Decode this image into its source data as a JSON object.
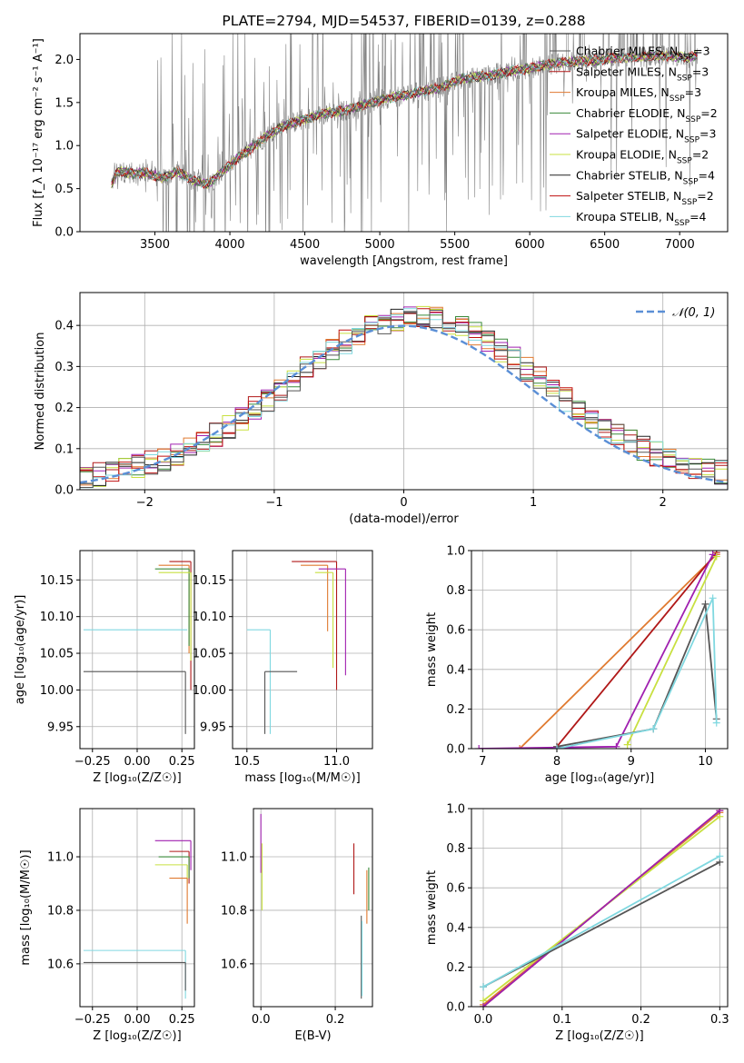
{
  "colors": {
    "black": "#222222",
    "red": "#b01818",
    "orange": "#e07a30",
    "green": "#3a8a3a",
    "purple": "#a020b0",
    "lime": "#c8e040",
    "gray": "#555555",
    "crimson": "#c01010",
    "cyan": "#80d8e0",
    "grid": "#b0b0b0",
    "spectrum": "#808080",
    "normal": "#5b8fd6"
  },
  "chart_data": [
    {
      "id": "spectrum",
      "type": "line",
      "title": "PLATE=2794, MJD=54537, FIBERID=0139, z=0.288",
      "xlabel": "wavelength [Angstrom, rest frame]",
      "ylabel": "Flux [f_λ 10⁻¹⁷ erg cm⁻² s⁻¹ A⁻¹]",
      "xlim": [
        3000,
        7320
      ],
      "ylim": [
        0,
        2.3
      ],
      "xticks": [
        "3500",
        "4000",
        "4500",
        "5000",
        "5500",
        "6000",
        "6500",
        "7000"
      ],
      "xtick_values": [
        3500,
        4000,
        4500,
        5000,
        5500,
        6000,
        6500,
        7000
      ],
      "yticks": [
        "0.0",
        "0.5",
        "1.0",
        "1.5",
        "2.0"
      ],
      "ytick_values": [
        0,
        0.5,
        1.0,
        1.5,
        2.0
      ],
      "data_range": [
        3210,
        7120
      ],
      "continuum": {
        "x": [
          3210,
          3250,
          3350,
          3450,
          3550,
          3650,
          3750,
          3850,
          3950,
          4050,
          4150,
          4250,
          4350,
          4450,
          4550,
          4650,
          4750,
          4850,
          4950,
          5050,
          5150,
          5250,
          5350,
          5450,
          5550,
          5650,
          5750,
          5850,
          5950,
          6050,
          6150,
          6250,
          6350,
          6450,
          6550,
          6650,
          6750,
          6850,
          6950,
          7050,
          7120
        ],
        "y": [
          0.55,
          0.7,
          0.68,
          0.68,
          0.62,
          0.7,
          0.6,
          0.55,
          0.7,
          0.85,
          0.98,
          1.12,
          1.22,
          1.28,
          1.33,
          1.38,
          1.4,
          1.45,
          1.5,
          1.55,
          1.58,
          1.62,
          1.65,
          1.7,
          1.78,
          1.8,
          1.82,
          1.86,
          1.88,
          1.92,
          1.95,
          1.97,
          1.98,
          1.99,
          2.02,
          2.02,
          2.03,
          2.05,
          2.04,
          2.02,
          2.05
        ]
      },
      "legend": [
        {
          "label": "Chabrier MILES, N",
          "sub": "SSP",
          "tail": "=3",
          "color": "gray"
        },
        {
          "label": "Salpeter MILES, N",
          "sub": "SSP",
          "tail": "=3",
          "color": "red"
        },
        {
          "label": "Kroupa MILES, N",
          "sub": "SSP",
          "tail": "=3",
          "color": "orange"
        },
        {
          "label": "Chabrier ELODIE, N",
          "sub": "SSP",
          "tail": "=2",
          "color": "green"
        },
        {
          "label": "Salpeter ELODIE, N",
          "sub": "SSP",
          "tail": "=3",
          "color": "purple"
        },
        {
          "label": "Kroupa ELODIE, N",
          "sub": "SSP",
          "tail": "=2",
          "color": "lime"
        },
        {
          "label": "Chabrier STELIB, N",
          "sub": "SSP",
          "tail": "=4",
          "color": "black"
        },
        {
          "label": "Salpeter STELIB, N",
          "sub": "SSP",
          "tail": "=2",
          "color": "crimson"
        },
        {
          "label": "Kroupa STELIB, N",
          "sub": "SSP",
          "tail": "=4",
          "color": "cyan"
        }
      ]
    },
    {
      "id": "residuals",
      "type": "line",
      "xlabel": "(data-model)/error",
      "ylabel": "Normed distribution",
      "xlim": [
        -2.5,
        2.5
      ],
      "ylim": [
        0,
        0.48
      ],
      "xticks": [
        "−2",
        "−1",
        "0",
        "1",
        "2"
      ],
      "xtick_values": [
        -2,
        -1,
        0,
        1,
        2
      ],
      "yticks": [
        "0.0",
        "0.1",
        "0.2",
        "0.3",
        "0.4"
      ],
      "ytick_values": [
        0,
        0.1,
        0.2,
        0.3,
        0.4
      ],
      "bin_width": 0.1,
      "legend": [
        {
          "label": "𝒩(0, 1)",
          "color": "normal"
        }
      ]
    },
    {
      "id": "age_vs_Z",
      "type": "scatter",
      "xlabel": "Z [log₁₀(Z/Z☉)]",
      "ylabel": "age  [log₁₀(age/yr)]",
      "xlim": [
        -0.32,
        0.32
      ],
      "ylim": [
        9.92,
        10.19
      ],
      "xticks": [
        "−0.25",
        "0.00",
        "0.25"
      ],
      "xtick_values": [
        -0.25,
        0,
        0.25
      ],
      "yticks": [
        "9.95",
        "10.00",
        "10.05",
        "10.10",
        "10.15"
      ],
      "ytick_values": [
        9.95,
        10.0,
        10.05,
        10.1,
        10.15
      ],
      "points": [
        {
          "x": 0.3,
          "y": 10.175,
          "xl": 0.18,
          "yl": 10.0,
          "color": "red"
        },
        {
          "x": 0.29,
          "y": 10.17,
          "xl": 0.12,
          "yl": 10.05,
          "color": "orange"
        },
        {
          "x": 0.29,
          "y": 10.165,
          "xl": 0.1,
          "yl": 10.06,
          "color": "green"
        },
        {
          "x": 0.3,
          "y": 10.16,
          "xl": 0.12,
          "yl": 10.04,
          "color": "lime"
        },
        {
          "x": 0.28,
          "y": 10.082,
          "xl": -0.3,
          "yl": 10.082,
          "color": "cyan"
        },
        {
          "x": 0.27,
          "y": 10.025,
          "xl": -0.3,
          "yl": 9.94,
          "color": "gray"
        }
      ]
    },
    {
      "id": "age_vs_mass",
      "type": "scatter",
      "xlabel": "mass [log₁₀(M/M☉)]",
      "xlim": [
        10.42,
        11.2
      ],
      "ylim": [
        9.92,
        10.19
      ],
      "xticks": [
        "10.5",
        "11.0"
      ],
      "xtick_values": [
        10.5,
        11.0
      ],
      "yticks": [
        "9.95",
        "10.00",
        "10.05",
        "10.10",
        "10.15"
      ],
      "ytick_values": [
        9.95,
        10.0,
        10.05,
        10.1,
        10.15
      ],
      "points": [
        {
          "x": 11.0,
          "y": 10.175,
          "xl": 10.75,
          "yl": 10.0,
          "color": "red"
        },
        {
          "x": 10.95,
          "y": 10.17,
          "xl": 10.8,
          "yl": 10.08,
          "color": "orange"
        },
        {
          "x": 11.05,
          "y": 10.165,
          "xl": 10.9,
          "yl": 10.02,
          "color": "purple"
        },
        {
          "x": 10.98,
          "y": 10.16,
          "xl": 10.88,
          "yl": 10.03,
          "color": "lime"
        },
        {
          "x": 10.63,
          "y": 10.082,
          "xl": 10.5,
          "yl": 9.94,
          "color": "cyan"
        },
        {
          "x": 10.6,
          "y": 10.025,
          "xl": 10.78,
          "yl": 9.94,
          "color": "gray"
        }
      ]
    },
    {
      "id": "massweight_vs_age",
      "type": "line",
      "xlabel": "age  [log₁₀(age/yr)]",
      "ylabel": "mass weight",
      "xlim": [
        6.85,
        10.3
      ],
      "ylim": [
        0,
        1.0
      ],
      "xticks": [
        "7",
        "8",
        "9",
        "10"
      ],
      "xtick_values": [
        7,
        8,
        9,
        10
      ],
      "yticks": [
        "0.0",
        "0.2",
        "0.4",
        "0.6",
        "0.8",
        "1.0"
      ],
      "ytick_values": [
        0,
        0.2,
        0.4,
        0.6,
        0.8,
        1.0
      ],
      "series": [
        {
          "x": [
            7.5,
            10.15
          ],
          "y": [
            0.0,
            0.98
          ],
          "color": "orange"
        },
        {
          "x": [
            8.0,
            10.15
          ],
          "y": [
            0.01,
            0.99
          ],
          "color": "red"
        },
        {
          "x": [
            6.95,
            8.8,
            10.1
          ],
          "y": [
            0.0,
            0.01,
            0.98
          ],
          "color": "purple"
        },
        {
          "x": [
            8.95,
            10.15
          ],
          "y": [
            0.02,
            0.97
          ],
          "color": "lime"
        },
        {
          "x": [
            8.0,
            9.3,
            10.0,
            10.15
          ],
          "y": [
            0.01,
            0.1,
            0.73,
            0.15
          ],
          "color": "gray"
        },
        {
          "x": [
            8.0,
            9.3,
            10.1,
            10.15
          ],
          "y": [
            0.0,
            0.1,
            0.76,
            0.13
          ],
          "color": "cyan"
        }
      ]
    },
    {
      "id": "mass_vs_Z",
      "type": "scatter",
      "xlabel": "Z [log₁₀(Z/Z☉)]",
      "ylabel": "mass [log₁₀(M/M☉)]",
      "xlim": [
        -0.32,
        0.32
      ],
      "ylim": [
        10.44,
        11.18
      ],
      "xticks": [
        "−0.25",
        "0.00",
        "0.25"
      ],
      "xtick_values": [
        -0.25,
        0,
        0.25
      ],
      "yticks": [
        "10.6",
        "10.8",
        "11.0"
      ],
      "ytick_values": [
        10.6,
        10.8,
        11.0
      ],
      "points": [
        {
          "x": 0.3,
          "y": 11.06,
          "xl": 0.1,
          "yl": 10.95,
          "color": "purple"
        },
        {
          "x": 0.29,
          "y": 11.02,
          "xl": 0.18,
          "yl": 10.9,
          "color": "red"
        },
        {
          "x": 0.29,
          "y": 11.0,
          "xl": 0.12,
          "yl": 10.92,
          "color": "green"
        },
        {
          "x": 0.28,
          "y": 10.97,
          "xl": 0.1,
          "yl": 10.9,
          "color": "lime"
        },
        {
          "x": 0.28,
          "y": 10.92,
          "xl": 0.18,
          "yl": 10.75,
          "color": "orange"
        },
        {
          "x": 0.27,
          "y": 10.65,
          "xl": -0.3,
          "yl": 10.47,
          "color": "cyan"
        },
        {
          "x": 0.27,
          "y": 10.605,
          "xl": -0.3,
          "yl": 10.5,
          "color": "gray"
        }
      ]
    },
    {
      "id": "mass_vs_ebv",
      "type": "scatter",
      "xlabel": "E(B-V)",
      "xlim": [
        -0.02,
        0.3
      ],
      "ylim": [
        10.44,
        11.18
      ],
      "xticks": [
        "0.0",
        "0.2"
      ],
      "xtick_values": [
        0,
        0.2
      ],
      "yticks": [
        "10.6",
        "10.8",
        "11.0"
      ],
      "ytick_values": [
        10.6,
        10.8,
        11.0
      ],
      "segments": [
        {
          "x": 0.0,
          "y1": 10.94,
          "y2": 11.16,
          "color": "purple"
        },
        {
          "x": 0.003,
          "y1": 10.8,
          "y2": 11.05,
          "color": "lime"
        },
        {
          "x": 0.25,
          "y1": 10.86,
          "y2": 11.05,
          "color": "red"
        },
        {
          "x": 0.27,
          "y1": 10.47,
          "y2": 10.78,
          "color": "gray"
        },
        {
          "x": 0.272,
          "y1": 10.48,
          "y2": 10.76,
          "color": "cyan"
        },
        {
          "x": 0.285,
          "y1": 10.75,
          "y2": 10.95,
          "color": "orange"
        },
        {
          "x": 0.29,
          "y1": 10.8,
          "y2": 10.96,
          "color": "green"
        }
      ]
    },
    {
      "id": "massweight_vs_Z",
      "type": "line",
      "xlabel": "Z [log₁₀(Z/Z☉)]",
      "ylabel": "mass weight",
      "xlim": [
        -0.015,
        0.31
      ],
      "ylim": [
        0,
        1.0
      ],
      "xticks": [
        "0.0",
        "0.1",
        "0.2",
        "0.3"
      ],
      "xtick_values": [
        0,
        0.1,
        0.2,
        0.3
      ],
      "yticks": [
        "0.0",
        "0.2",
        "0.4",
        "0.6",
        "0.8",
        "1.0"
      ],
      "ytick_values": [
        0,
        0.2,
        0.4,
        0.6,
        0.8,
        1.0
      ],
      "series": [
        {
          "x": [
            0.0,
            0.3
          ],
          "y": [
            0.0,
            0.99
          ],
          "color": "red"
        },
        {
          "x": [
            0.0,
            0.3
          ],
          "y": [
            0.01,
            0.98
          ],
          "color": "orange"
        },
        {
          "x": [
            0.0,
            0.3
          ],
          "y": [
            0.03,
            0.96
          ],
          "color": "lime"
        },
        {
          "x": [
            0.0,
            0.3
          ],
          "y": [
            0.0,
            0.99
          ],
          "color": "purple"
        },
        {
          "x": [
            0.0,
            0.3
          ],
          "y": [
            0.1,
            0.73
          ],
          "color": "gray"
        },
        {
          "x": [
            0.0,
            0.3
          ],
          "y": [
            0.1,
            0.76
          ],
          "color": "cyan"
        }
      ]
    }
  ]
}
